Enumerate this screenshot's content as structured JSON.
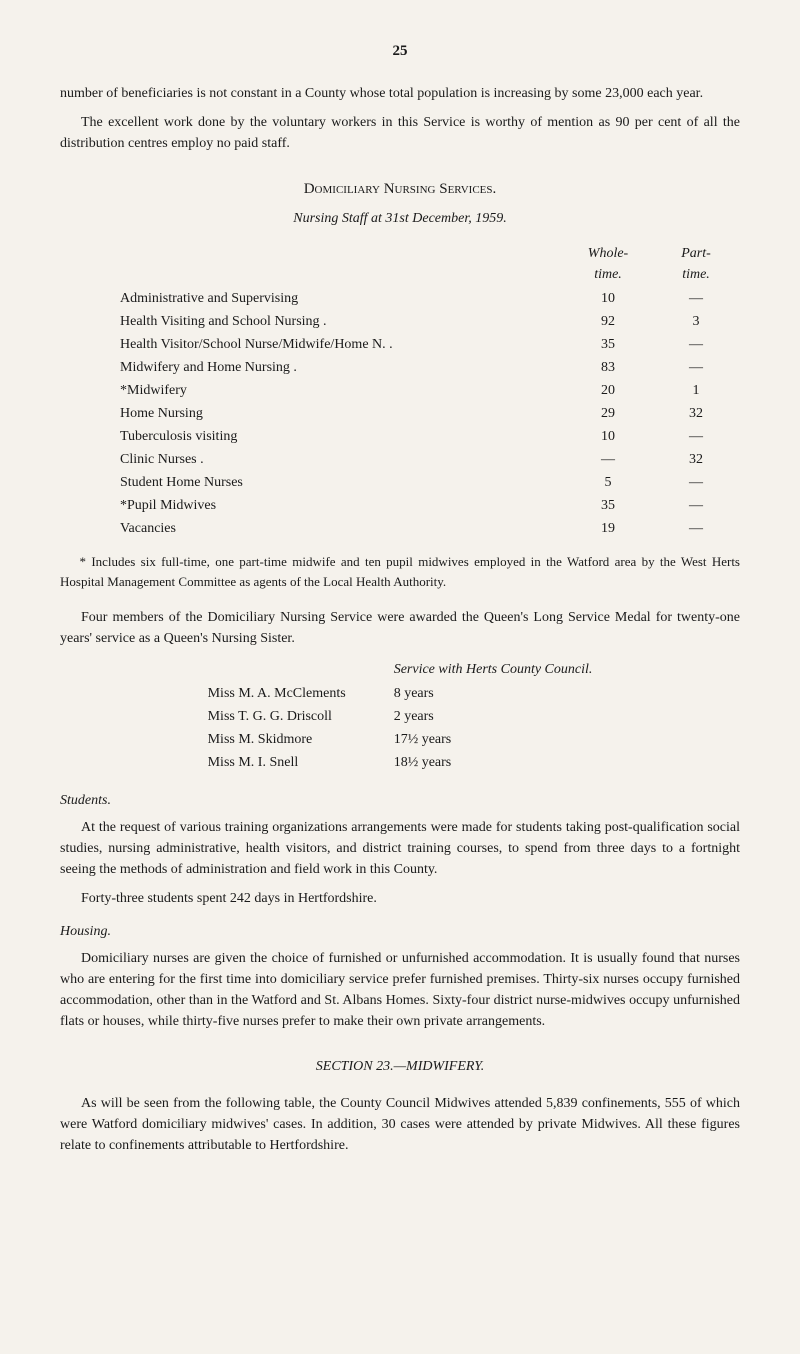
{
  "page_number": "25",
  "intro": {
    "para1": "number of beneficiaries is not constant in a County whose total population is increasing by some 23,000 each year.",
    "para2": "The excellent work done by the voluntary workers in this Service is worthy of mention as 90 per cent of all the distribution centres employ no paid staff."
  },
  "domiciliary": {
    "title": "Domiciliary Nursing Services.",
    "subtitle": "Nursing Staff at 31st December, 1959.",
    "header_whole": "Whole-time.",
    "header_part": "Part-time.",
    "rows": [
      {
        "label": "Administrative and Supervising",
        "whole": "10",
        "part": "—"
      },
      {
        "label": "Health Visiting and School Nursing .",
        "whole": "92",
        "part": "3"
      },
      {
        "label": "Health Visitor/School Nurse/Midwife/Home N. .",
        "whole": "35",
        "part": "—"
      },
      {
        "label": "Midwifery and Home Nursing .",
        "whole": "83",
        "part": "—"
      },
      {
        "label": "*Midwifery",
        "whole": "20",
        "part": "1"
      },
      {
        "label": "Home Nursing",
        "whole": "29",
        "part": "32"
      },
      {
        "label": "Tuberculosis visiting",
        "whole": "10",
        "part": "—"
      },
      {
        "label": "Clinic Nurses .",
        "whole": "—",
        "part": "32"
      },
      {
        "label": "Student Home Nurses",
        "whole": "5",
        "part": "—"
      },
      {
        "label": "*Pupil Midwives",
        "whole": "35",
        "part": "—"
      },
      {
        "label": "Vacancies",
        "whole": "19",
        "part": "—"
      }
    ],
    "footnote": "* Includes six full-time, one part-time midwife and ten pupil midwives employed in the Watford area by the West Herts Hospital Management Committee as agents of the Local Health Authority."
  },
  "queens_medal": {
    "para": "Four members of the Domiciliary Nursing Service were awarded the Queen's Long Service Medal for twenty-one years' service as a Queen's Nursing Sister.",
    "header": "Service with Herts County Council.",
    "rows": [
      {
        "name": "Miss M. A. McClements",
        "service": "8 years"
      },
      {
        "name": "Miss T. G. G. Driscoll",
        "service": "2 years"
      },
      {
        "name": "Miss M. Skidmore",
        "service": "17½ years"
      },
      {
        "name": "Miss M. I. Snell",
        "service": "18½ years"
      }
    ]
  },
  "students": {
    "heading": "Students.",
    "para1": "At the request of various training organizations arrangements were made for students taking post-qualification social studies, nursing administrative, health visitors, and district training courses, to spend from three days to a fortnight seeing the methods of administration and field work in this County.",
    "para2": "Forty-three students spent 242 days in Hertfordshire."
  },
  "housing": {
    "heading": "Housing.",
    "para": "Domiciliary nurses are given the choice of furnished or unfurnished accommodation. It is usually found that nurses who are entering for the first time into domiciliary service prefer furnished premises. Thirty-six nurses occupy furnished accommodation, other than in the Watford and St. Albans Homes. Sixty-four district nurse-midwives occupy unfurnished flats or houses, while thirty-five nurses prefer to make their own private arrangements."
  },
  "midwifery": {
    "label": "SECTION 23.—MIDWIFERY.",
    "para": "As will be seen from the following table, the County Council Midwives attended 5,839 confinements, 555 of which were Watford domiciliary midwives' cases. In addition, 30 cases were attended by private Midwives. All these figures relate to confinements attributable to Hertfordshire."
  }
}
